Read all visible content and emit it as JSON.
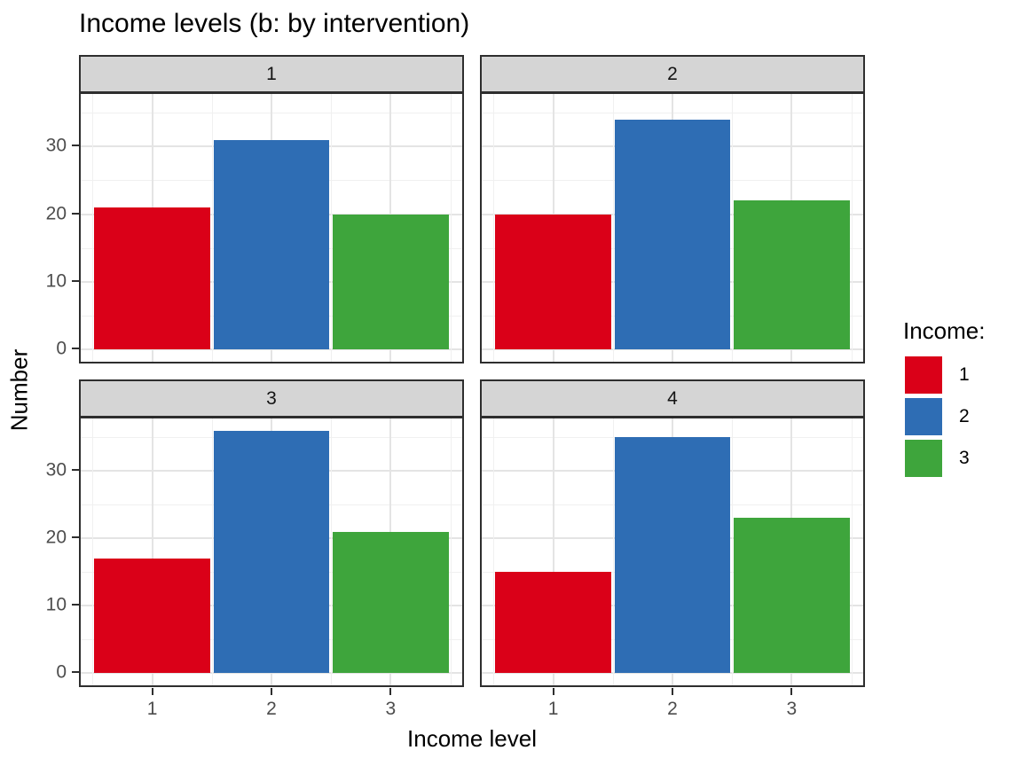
{
  "title": "Income levels (b: by intervention)",
  "axes": {
    "x_title": "Income level",
    "y_title": "Number",
    "y_ticks": [
      "0",
      "10",
      "20",
      "30"
    ],
    "x_ticks": [
      "1",
      "2",
      "3"
    ]
  },
  "legend": {
    "title": "Income:",
    "items": [
      {
        "label": "1",
        "color": "#da0018"
      },
      {
        "label": "2",
        "color": "#2e6db4"
      },
      {
        "label": "3",
        "color": "#3ea53c"
      }
    ]
  },
  "facet_strips": {
    "f0": "1",
    "f1": "2",
    "f2": "3",
    "f3": "4"
  },
  "chart_data": {
    "type": "bar",
    "title": "Income levels (b: by intervention)",
    "xlabel": "Income level",
    "ylabel": "Number",
    "facet_variable": "intervention",
    "categories": [
      "1",
      "2",
      "3"
    ],
    "facets": [
      {
        "label": "1",
        "values": [
          21,
          31,
          20
        ]
      },
      {
        "label": "2",
        "values": [
          20,
          34,
          22
        ]
      },
      {
        "label": "3",
        "values": [
          17,
          36,
          21
        ]
      },
      {
        "label": "4",
        "values": [
          15,
          35,
          23
        ]
      }
    ],
    "series_colors": {
      "1": "#da0018",
      "2": "#2e6db4",
      "3": "#3ea53c"
    },
    "ylim": [
      0,
      37.8
    ],
    "y_major_gridlines": [
      0,
      10,
      20,
      30
    ],
    "y_minor_gridlines": [
      5,
      15,
      25,
      35
    ],
    "x_major_gridlines": [
      1,
      2,
      3
    ],
    "x_minor_gridlines": [
      0.5,
      1.5,
      2.5,
      3.5
    ],
    "bar_width": 0.97,
    "grid": true,
    "legend_position": "right",
    "legend_title": "Income:"
  }
}
